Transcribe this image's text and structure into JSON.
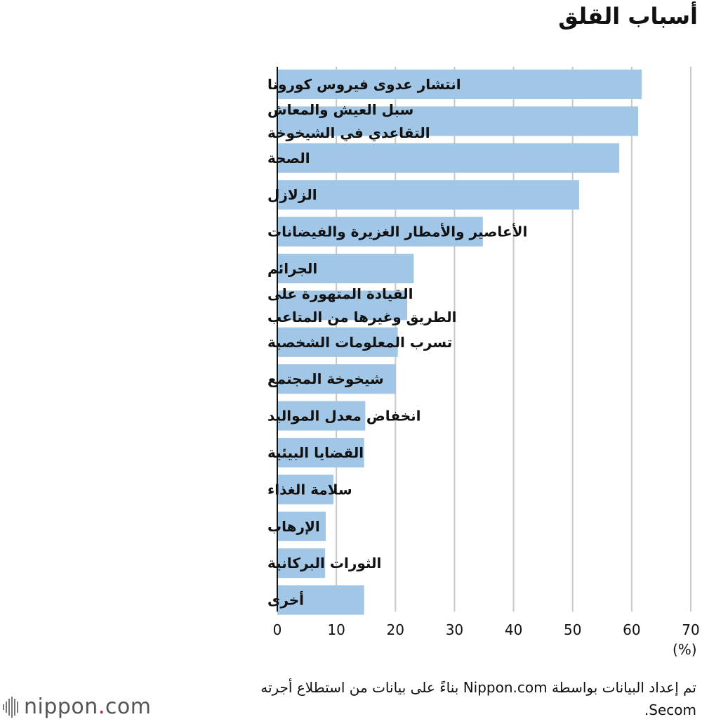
{
  "title": "أسباب القلق",
  "unit_label": "(%)",
  "source_note": "تم إعداد البيانات بواسطة Nippon.com بناءً على بيانات من استطلاع أجرته Secom.",
  "logo": {
    "name": "nippon",
    "dot": ".",
    "suffix": "com"
  },
  "colors": {
    "bar": "#a2c6e6",
    "grid": "#c8c8c8",
    "axis": "#111111"
  },
  "chart_data": {
    "type": "bar",
    "orientation": "horizontal",
    "title": "أسباب القلق",
    "xlabel": "(%)",
    "xlim": [
      0,
      70
    ],
    "xticks": [
      0,
      10,
      20,
      30,
      40,
      50,
      60,
      70
    ],
    "grid": true,
    "categories": [
      [
        "انتشار عدوى فيروس كورونا"
      ],
      [
        "سبل العيش والمعاش",
        "التقاعدي في الشيخوخة"
      ],
      [
        "الصحة"
      ],
      [
        "الزلازل"
      ],
      [
        "الأعاصير والأمطار الغزيرة والفيضانات"
      ],
      [
        "الجرائم"
      ],
      [
        "القيادة المتهورة على",
        "الطريق وغيرها من المتاعب"
      ],
      [
        "تسرب المعلومات الشخصية"
      ],
      [
        "شيخوخة المجتمع"
      ],
      [
        "انخفاض معدل المواليد"
      ],
      [
        "القضايا البيئية"
      ],
      [
        "سلامة الغذاء"
      ],
      [
        "الإرهاب"
      ],
      [
        "الثورات البركانية"
      ],
      [
        "أخرى"
      ]
    ],
    "values": [
      61.7,
      61.1,
      57.9,
      51.1,
      34.8,
      23.1,
      22.0,
      20.4,
      20.1,
      14.9,
      14.7,
      9.5,
      8.2,
      8.1,
      14.7
    ]
  }
}
